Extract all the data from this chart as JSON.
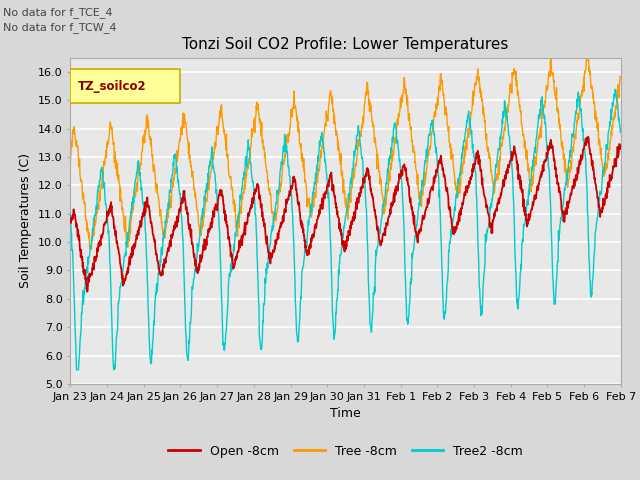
{
  "title": "Tonzi Soil CO2 Profile: Lower Temperatures",
  "ylabel": "Soil Temperatures (C)",
  "xlabel": "Time",
  "annotation_lines": [
    "No data for f_TCE_4",
    "No data for f_TCW_4"
  ],
  "legend_label": "TZ_soilco2",
  "ylim": [
    5.0,
    16.5
  ],
  "yticks": [
    5.0,
    6.0,
    7.0,
    8.0,
    9.0,
    10.0,
    11.0,
    12.0,
    13.0,
    14.0,
    15.0,
    16.0
  ],
  "xtick_labels": [
    "Jan 23",
    "Jan 24",
    "Jan 25",
    "Jan 26",
    "Jan 27",
    "Jan 28",
    "Jan 29",
    "Jan 30",
    "Jan 31",
    "Feb 1",
    "Feb 2",
    "Feb 3",
    "Feb 4",
    "Feb 5",
    "Feb 6",
    "Feb 7"
  ],
  "line_colors": {
    "open": "#cc0000",
    "tree": "#ff9900",
    "tree2": "#00cccc"
  },
  "line_labels": [
    "Open -8cm",
    "Tree -8cm",
    "Tree2 -8cm"
  ],
  "fig_bg_color": "#d8d8d8",
  "plot_bg_color": "#e8e8e8",
  "grid_color": "#ffffff",
  "legend_box_color": "#ffff99",
  "legend_box_edge": "#ccaa00",
  "title_fontsize": 11,
  "label_fontsize": 9,
  "tick_fontsize": 8
}
